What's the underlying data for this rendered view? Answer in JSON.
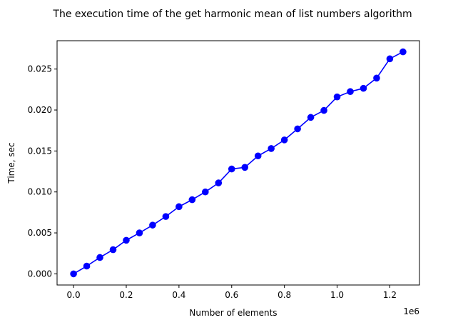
{
  "chart_data": {
    "type": "line",
    "title": "The execution time of the get harmonic mean of list numbers algorithm",
    "xlabel": "Number of elements",
    "ylabel": "Time, sec",
    "x_offset_label": "1e6",
    "xlim": [
      -0.0625,
      1.3125
    ],
    "ylim": [
      -0.00136,
      0.02846
    ],
    "x_ticks": [
      0.0,
      0.2,
      0.4,
      0.6,
      0.8,
      1.0,
      1.2
    ],
    "x_tick_labels": [
      "0.0",
      "0.2",
      "0.4",
      "0.6",
      "0.8",
      "1.0",
      "1.2"
    ],
    "y_ticks": [
      0.0,
      0.005,
      0.01,
      0.015,
      0.02,
      0.025
    ],
    "y_tick_labels": [
      "0.000",
      "0.005",
      "0.010",
      "0.015",
      "0.020",
      "0.025"
    ],
    "grid": false,
    "series": [
      {
        "color": "#0000ff",
        "marker": "circle",
        "x": [
          0.0,
          0.05,
          0.1,
          0.15,
          0.2,
          0.25,
          0.3,
          0.35,
          0.4,
          0.45,
          0.5,
          0.55,
          0.6,
          0.65,
          0.7,
          0.75,
          0.8,
          0.85,
          0.9,
          0.95,
          1.0,
          1.05,
          1.1,
          1.15,
          1.2,
          1.25
        ],
        "y": [
          0.0,
          0.00095,
          0.002,
          0.00295,
          0.0041,
          0.005,
          0.00595,
          0.007,
          0.0082,
          0.00905,
          0.01,
          0.0111,
          0.0128,
          0.013,
          0.0144,
          0.0153,
          0.01635,
          0.0177,
          0.0191,
          0.01995,
          0.0216,
          0.02225,
          0.02265,
          0.0239,
          0.02625,
          0.0271
        ]
      }
    ]
  }
}
